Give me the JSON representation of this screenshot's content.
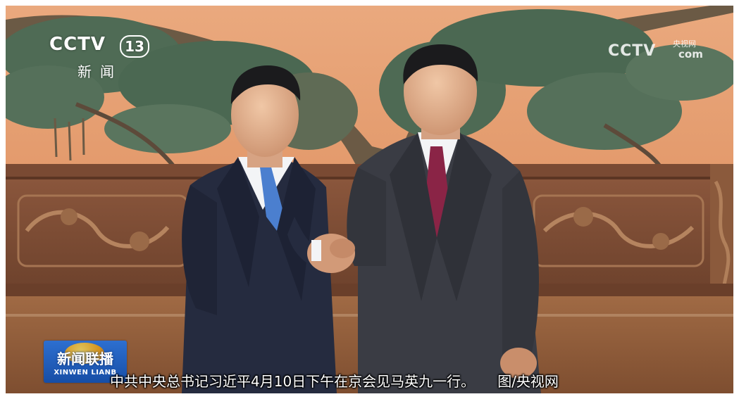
{
  "channel_logo": {
    "brand": "CCTV",
    "number": "13",
    "subtitle": "新闻"
  },
  "watermark": {
    "brand": "CCTV",
    "site": "央视网",
    "suffix": "com"
  },
  "program_logo": {
    "title": "新闻联播",
    "pinyin": "XINWEN LIANB"
  },
  "caption": {
    "text": "中共中央总书记习近平4月10日下午在京会见马英九一行。",
    "credit": "图/央视网"
  },
  "colors": {
    "wall": "#e6a074",
    "wood": "#7a4a33",
    "suit_dark": "#252b3f",
    "suit_gray": "#3a3c44",
    "tie_left": "#4b7fcf",
    "tie_right": "#8a2446",
    "logo_blue": "#1f5fc0"
  }
}
